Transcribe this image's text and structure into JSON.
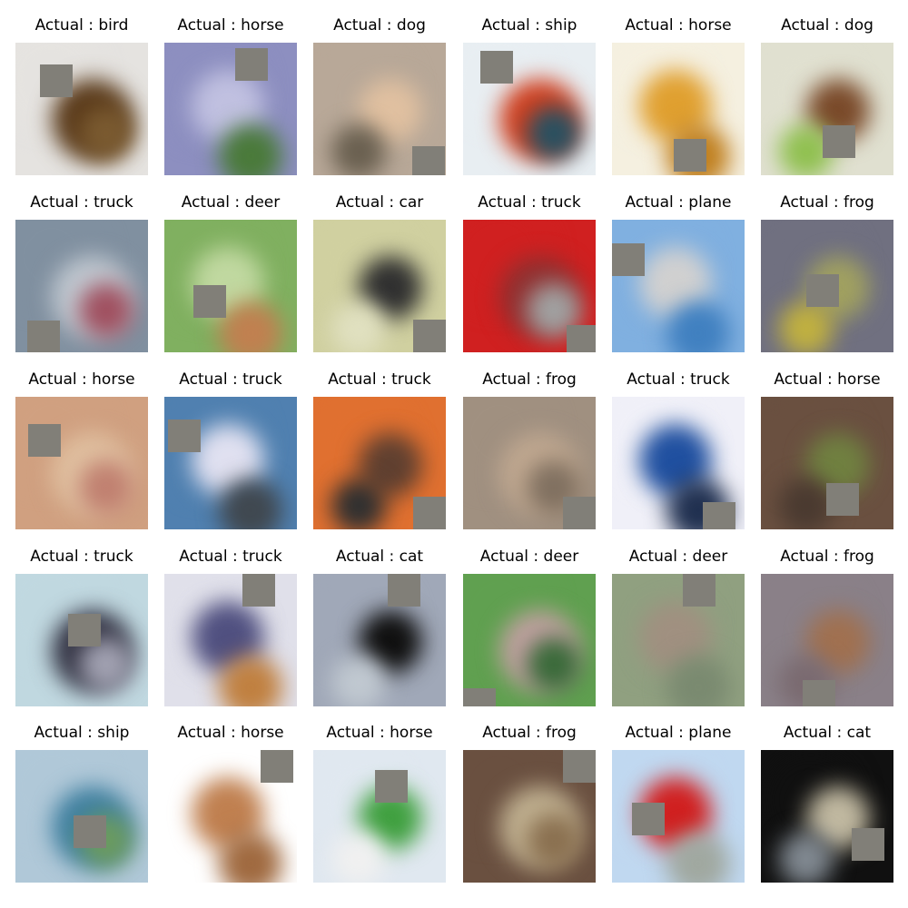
{
  "tiles": [
    {
      "label": "Actual : bird",
      "colors": [
        "#e5e3e0",
        "#5a3a1a",
        "#7a5a30"
      ],
      "mask_color": "#817f78"
    },
    {
      "label": "Actual : horse",
      "colors": [
        "#8d8fc0",
        "#c0c0e0",
        "#4a7a3a"
      ],
      "mask_color": "#817f78"
    },
    {
      "label": "Actual : dog",
      "colors": [
        "#b8a898",
        "#e0c0a0",
        "#6a6050"
      ],
      "mask_color": "#817f78"
    },
    {
      "label": "Actual : ship",
      "colors": [
        "#e8eef2",
        "#d04020",
        "#2a5060"
      ],
      "mask_color": "#817f78"
    },
    {
      "label": "Actual : horse",
      "colors": [
        "#f5f0e0",
        "#e0a030",
        "#c08020"
      ],
      "mask_color": "#817f78"
    },
    {
      "label": "Actual : dog",
      "colors": [
        "#e0e0d0",
        "#7a4a2a",
        "#90c050"
      ],
      "mask_color": "#817f78"
    },
    {
      "label": "Actual : truck",
      "colors": [
        "#8090a0",
        "#c0c8d0",
        "#a05060"
      ],
      "mask_color": "#817f78"
    },
    {
      "label": "Actual : deer",
      "colors": [
        "#80b060",
        "#c0d8a0",
        "#c08050"
      ],
      "mask_color": "#817f78"
    },
    {
      "label": "Actual : car",
      "colors": [
        "#d0d0a0",
        "#303030",
        "#e0e0c0"
      ],
      "mask_color": "#817f78"
    },
    {
      "label": "Actual : truck",
      "colors": [
        "#d02020",
        "#903030",
        "#a0a0a0"
      ],
      "mask_color": "#817f78"
    },
    {
      "label": "Actual : plane",
      "colors": [
        "#80b0e0",
        "#d0d0d0",
        "#4080c0"
      ],
      "mask_color": "#817f78"
    },
    {
      "label": "Actual : frog",
      "colors": [
        "#707080",
        "#a0a060",
        "#c0b040"
      ],
      "mask_color": "#817f78"
    },
    {
      "label": "Actual : horse",
      "colors": [
        "#d0a080",
        "#e0c0a0",
        "#c08070"
      ],
      "mask_color": "#817f78"
    },
    {
      "label": "Actual : truck",
      "colors": [
        "#5080b0",
        "#e0e0f0",
        "#404850"
      ],
      "mask_color": "#817f78"
    },
    {
      "label": "Actual : truck",
      "colors": [
        "#e07030",
        "#604030",
        "#303030"
      ],
      "mask_color": "#817f78"
    },
    {
      "label": "Actual : frog",
      "colors": [
        "#a09080",
        "#c0a890",
        "#807060"
      ],
      "mask_color": "#817f78"
    },
    {
      "label": "Actual : truck",
      "colors": [
        "#f0f0f8",
        "#2050a0",
        "#203050"
      ],
      "mask_color": "#817f78"
    },
    {
      "label": "Actual : horse",
      "colors": [
        "#6a5040",
        "#708040",
        "#4a3a30"
      ],
      "mask_color": "#817f78"
    },
    {
      "label": "Actual : truck",
      "colors": [
        "#c0d8e0",
        "#303040",
        "#a0a0b0"
      ],
      "mask_color": "#817f78"
    },
    {
      "label": "Actual : truck",
      "colors": [
        "#e0e0ea",
        "#505080",
        "#c08040"
      ],
      "mask_color": "#817f78"
    },
    {
      "label": "Actual : cat",
      "colors": [
        "#a0a8b8",
        "#101010",
        "#c0c8d0"
      ],
      "mask_color": "#817f78"
    },
    {
      "label": "Actual : deer",
      "colors": [
        "#60a050",
        "#c0a0a0",
        "#3a6a3a"
      ],
      "mask_color": "#817f78"
    },
    {
      "label": "Actual : deer",
      "colors": [
        "#90a080",
        "#a09080",
        "#7a8a70"
      ],
      "mask_color": "#817f78"
    },
    {
      "label": "Actual : frog",
      "colors": [
        "#8a8088",
        "#a07050",
        "#7a6a70"
      ],
      "mask_color": "#817f78"
    },
    {
      "label": "Actual : ship",
      "colors": [
        "#b0c8d8",
        "#4080a0",
        "#6a9a60"
      ],
      "mask_color": "#817f78"
    },
    {
      "label": "Actual : horse",
      "colors": [
        "#ffffff",
        "#c08050",
        "#a06a40"
      ],
      "mask_color": "#817f78"
    },
    {
      "label": "Actual : horse",
      "colors": [
        "#e0e8f0",
        "#40a040",
        "#f0f0f0"
      ],
      "mask_color": "#817f78"
    },
    {
      "label": "Actual : frog",
      "colors": [
        "#6a5040",
        "#c0b090",
        "#8a7050"
      ],
      "mask_color": "#817f78"
    },
    {
      "label": "Actual : plane",
      "colors": [
        "#c0d8f0",
        "#d02020",
        "#a0a8a0"
      ],
      "mask_color": "#817f78"
    },
    {
      "label": "Actual : cat",
      "colors": [
        "#101010",
        "#c0b8a0",
        "#808890"
      ],
      "mask_color": "#817f78"
    }
  ]
}
